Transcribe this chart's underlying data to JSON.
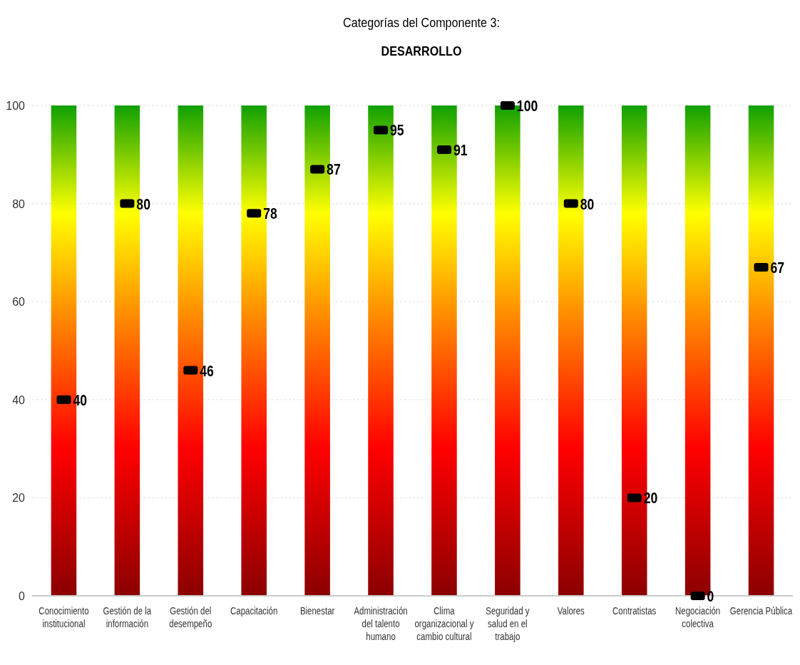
{
  "chart_data": {
    "type": "scatter",
    "title": "Categorías del Componente 3:",
    "subtitle": "DESARROLLO",
    "categories": [
      "Conocimiento institucional",
      "Gestión de la información",
      "Gestión del desempeño",
      "Capacitación",
      "Bienestar",
      "Administración del talento humano",
      "Clima organizacional y cambio cultural",
      "Seguridad y salud en el trabajo",
      "Valores",
      "Contratistas",
      "Negociación colectiva",
      "Gerencia Pública"
    ],
    "series": [
      {
        "type": "bar",
        "values": [
          100,
          100,
          100,
          100,
          100,
          100,
          100,
          100,
          100,
          100,
          100,
          100
        ]
      },
      {
        "color": "#000000",
        "values": [
          40,
          80,
          46,
          78,
          87,
          95,
          91,
          100,
          80,
          20,
          0,
          67
        ],
        "value_labels": [
          "40",
          "80",
          "46",
          "78",
          "87",
          "95",
          "91",
          "100",
          "80",
          "20",
          "0",
          "67"
        ]
      }
    ],
    "ylim": [
      0,
      100
    ],
    "yticks": [
      0,
      20,
      40,
      60,
      80,
      100
    ],
    "grid": "y",
    "marker": "square"
  }
}
